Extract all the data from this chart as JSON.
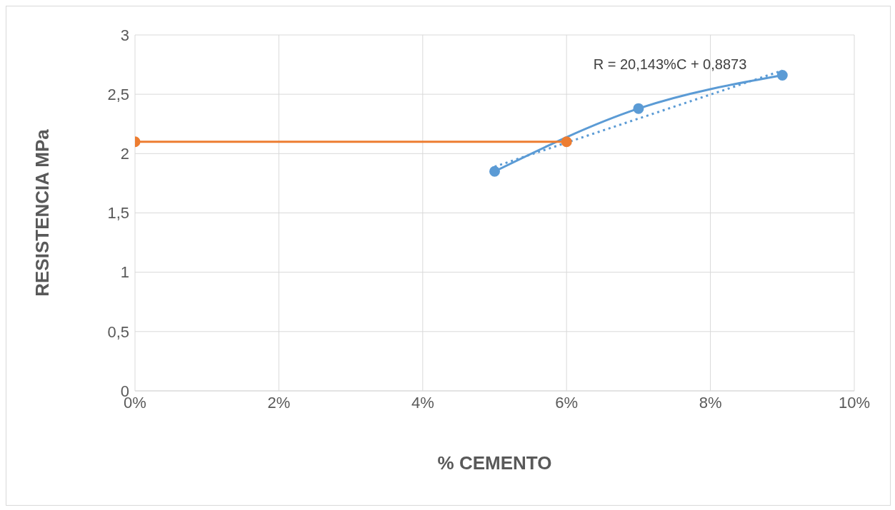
{
  "chart_data": {
    "type": "line",
    "xlabel": "% CEMENTO",
    "ylabel": "RESISTENCIA MPa",
    "xlim": [
      0,
      10
    ],
    "xticks": [
      {
        "value": 0,
        "label": "0%"
      },
      {
        "value": 2,
        "label": "2%"
      },
      {
        "value": 4,
        "label": "4%"
      },
      {
        "value": 6,
        "label": "6%"
      },
      {
        "value": 8,
        "label": "8%"
      },
      {
        "value": 10,
        "label": "10%"
      }
    ],
    "ylim": [
      0,
      3
    ],
    "yticks": [
      {
        "value": 0,
        "label": "0"
      },
      {
        "value": 0.5,
        "label": "0,5"
      },
      {
        "value": 1,
        "label": "1"
      },
      {
        "value": 1.5,
        "label": "1,5"
      },
      {
        "value": 2,
        "label": "2"
      },
      {
        "value": 2.5,
        "label": "2,5"
      },
      {
        "value": 3,
        "label": "3"
      }
    ],
    "grid": true,
    "legend": false,
    "series": [
      {
        "color": "#5b9bd5",
        "x": [
          5,
          7,
          9
        ],
        "values": [
          1.85,
          2.38,
          2.66
        ],
        "marker": "circle",
        "line_style": "solid"
      },
      {
        "color": "#ed7d31",
        "x": [
          0,
          6
        ],
        "values": [
          2.1,
          2.1
        ],
        "marker": "circle",
        "line_style": "solid"
      },
      {
        "color": "#5b9bd5",
        "x": [
          5,
          9
        ],
        "values": [
          1.89,
          2.7
        ],
        "marker": "none",
        "line_style": "dotted"
      }
    ],
    "annotations": [
      "R = 20,143%C + 0,8873"
    ]
  }
}
